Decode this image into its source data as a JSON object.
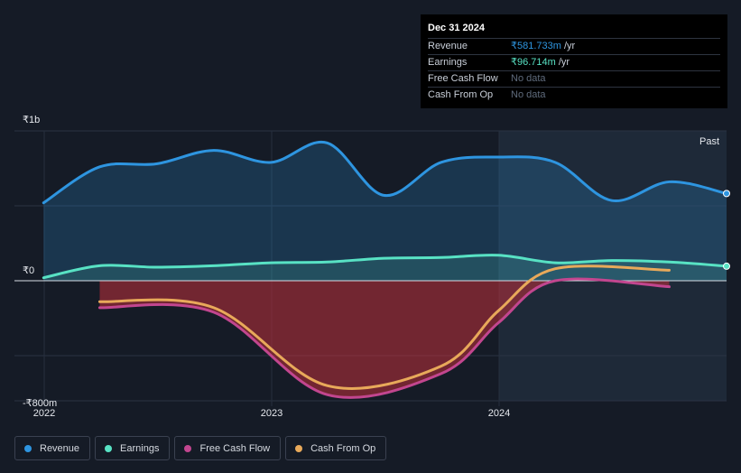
{
  "tooltip": {
    "date": "Dec 31 2024",
    "rows": [
      {
        "label": "Revenue",
        "value": "₹581.733m",
        "unit": "/yr"
      },
      {
        "label": "Earnings",
        "value": "₹96.714m",
        "unit": "/yr"
      },
      {
        "label": "Free Cash Flow",
        "value": "No data",
        "unit": ""
      },
      {
        "label": "Cash From Op",
        "value": "No data",
        "unit": ""
      }
    ]
  },
  "legend": [
    {
      "label": "Revenue",
      "color": "#2e95e0"
    },
    {
      "label": "Earnings",
      "color": "#58e2c4"
    },
    {
      "label": "Free Cash Flow",
      "color": "#c2468f"
    },
    {
      "label": "Cash From Op",
      "color": "#e8a95a"
    }
  ],
  "chart_data": {
    "type": "line",
    "y_tick_labels": [
      "₹1b",
      "₹0",
      "-₹800m"
    ],
    "x_tick_labels": [
      "2022",
      "2023",
      "2024"
    ],
    "past_label": "Past",
    "ylim": [
      -800,
      1000
    ],
    "series": [
      {
        "name": "Revenue",
        "color": "#2e95e0",
        "points": [
          [
            "2021-12-31",
            520
          ],
          [
            "2022-03-31",
            760
          ],
          [
            "2022-06-30",
            780
          ],
          [
            "2022-09-30",
            870
          ],
          [
            "2022-12-31",
            790
          ],
          [
            "2023-03-31",
            920
          ],
          [
            "2023-06-30",
            570
          ],
          [
            "2023-09-30",
            790
          ],
          [
            "2023-12-31",
            825
          ],
          [
            "2024-03-31",
            790
          ],
          [
            "2024-06-30",
            535
          ],
          [
            "2024-09-30",
            660
          ],
          [
            "2024-12-31",
            582
          ]
        ]
      },
      {
        "name": "Earnings",
        "color": "#58e2c4",
        "points": [
          [
            "2021-12-31",
            20
          ],
          [
            "2022-03-31",
            100
          ],
          [
            "2022-06-30",
            90
          ],
          [
            "2022-09-30",
            100
          ],
          [
            "2022-12-31",
            120
          ],
          [
            "2023-03-31",
            125
          ],
          [
            "2023-06-30",
            150
          ],
          [
            "2023-09-30",
            155
          ],
          [
            "2023-12-31",
            170
          ],
          [
            "2024-03-31",
            120
          ],
          [
            "2024-06-30",
            135
          ],
          [
            "2024-09-30",
            125
          ],
          [
            "2024-12-31",
            97
          ]
        ]
      },
      {
        "name": "Free Cash Flow",
        "color": "#c2468f",
        "points": [
          [
            "2022-03-31",
            -180
          ],
          [
            "2022-09-30",
            -210
          ],
          [
            "2023-03-31",
            -760
          ],
          [
            "2023-09-30",
            -620
          ],
          [
            "2023-12-31",
            -280
          ],
          [
            "2024-03-31",
            0
          ],
          [
            "2024-09-30",
            -40
          ]
        ]
      },
      {
        "name": "Cash From Op",
        "color": "#e8a95a",
        "points": [
          [
            "2022-03-31",
            -140
          ],
          [
            "2022-09-30",
            -180
          ],
          [
            "2023-03-31",
            -700
          ],
          [
            "2023-09-30",
            -570
          ],
          [
            "2023-12-31",
            -200
          ],
          [
            "2024-03-31",
            80
          ],
          [
            "2024-09-30",
            70
          ]
        ]
      }
    ]
  }
}
